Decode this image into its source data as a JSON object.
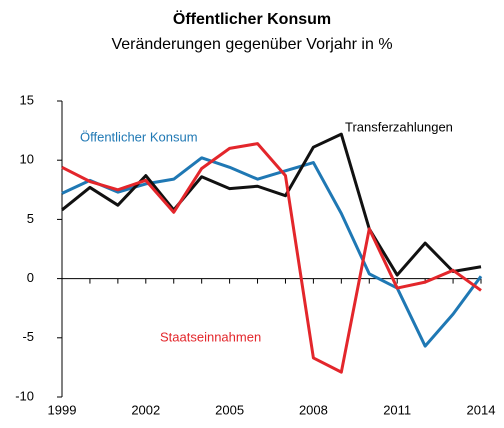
{
  "chart_data": {
    "type": "line",
    "title": "Öffentlicher Konsum",
    "subtitle": "Veränderungen gegenüber Vorjahr in %",
    "x": [
      1999,
      2000,
      2001,
      2002,
      2003,
      2004,
      2005,
      2006,
      2007,
      2008,
      2009,
      2010,
      2011,
      2012,
      2013,
      2014
    ],
    "xlim": [
      1999,
      2014
    ],
    "xticks": [
      1999,
      2002,
      2005,
      2008,
      2011,
      2014
    ],
    "ylim": [
      -10,
      15
    ],
    "yticks": [
      -10,
      -5,
      0,
      5,
      10,
      15
    ],
    "grid": false,
    "series": [
      {
        "name": "Öffentlicher Konsum",
        "color": "#1f78b4",
        "values": [
          7.2,
          8.3,
          7.3,
          8.0,
          8.4,
          10.2,
          9.4,
          8.4,
          9.1,
          9.8,
          5.5,
          0.4,
          -0.8,
          -5.7,
          -3.0,
          0.2
        ]
      },
      {
        "name": "Transferzahlungen",
        "color": "#111111",
        "values": [
          5.8,
          7.7,
          6.2,
          8.7,
          5.8,
          8.6,
          7.6,
          7.8,
          7.0,
          11.1,
          12.2,
          4.2,
          0.3,
          3.0,
          0.6,
          1.0
        ]
      },
      {
        "name": "Staatseinnahmen",
        "color": "#e3262b",
        "values": [
          9.4,
          8.2,
          7.5,
          8.3,
          5.6,
          9.3,
          11.0,
          11.4,
          8.7,
          -6.7,
          -7.9,
          4.2,
          -0.8,
          -0.3,
          0.7,
          -1.0
        ]
      }
    ]
  }
}
